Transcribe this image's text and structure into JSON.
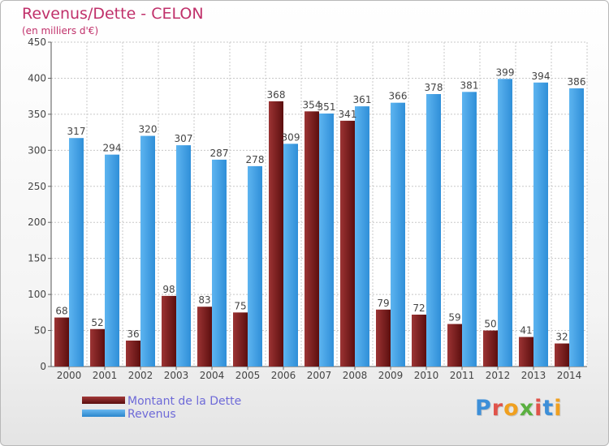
{
  "title": "Revenus/Dette - CELON",
  "subtitle": "(en milliers d'€)",
  "logo_text": "Proxiti",
  "colors": {
    "dette": "#7a1b1b",
    "revenus": "#3d9fe6",
    "title": "#c0306a",
    "legend_text": "#6e6ad8"
  },
  "chart_data": {
    "type": "bar",
    "categories": [
      "2000",
      "2001",
      "2002",
      "2003",
      "2004",
      "2005",
      "2006",
      "2007",
      "2008",
      "2009",
      "2010",
      "2011",
      "2012",
      "2013",
      "2014"
    ],
    "series": [
      {
        "name": "Montant de la Dette",
        "values": [
          68,
          52,
          36,
          98,
          83,
          75,
          368,
          354,
          341,
          79,
          72,
          59,
          50,
          41,
          32
        ],
        "labels": [
          "68",
          "52",
          "36",
          "98",
          "83",
          "75",
          "368",
          "354",
          "341",
          "79",
          "72",
          "59",
          "50",
          "41",
          "32"
        ]
      },
      {
        "name": "Revenus",
        "values": [
          317,
          294,
          320,
          307,
          287,
          278,
          309,
          351,
          361,
          366,
          378,
          381,
          399,
          394,
          386
        ],
        "labels": [
          "317",
          "294",
          "320",
          "307",
          "287",
          "278",
          "309",
          "351",
          "361",
          "366",
          "378",
          "381",
          "399",
          "394",
          "386"
        ]
      }
    ],
    "ylim": [
      0,
      450
    ],
    "yticks": [
      "0",
      "50",
      "100",
      "150",
      "200",
      "250",
      "300",
      "350",
      "400",
      "450"
    ],
    "grid": true,
    "legend": "bottom-left"
  }
}
